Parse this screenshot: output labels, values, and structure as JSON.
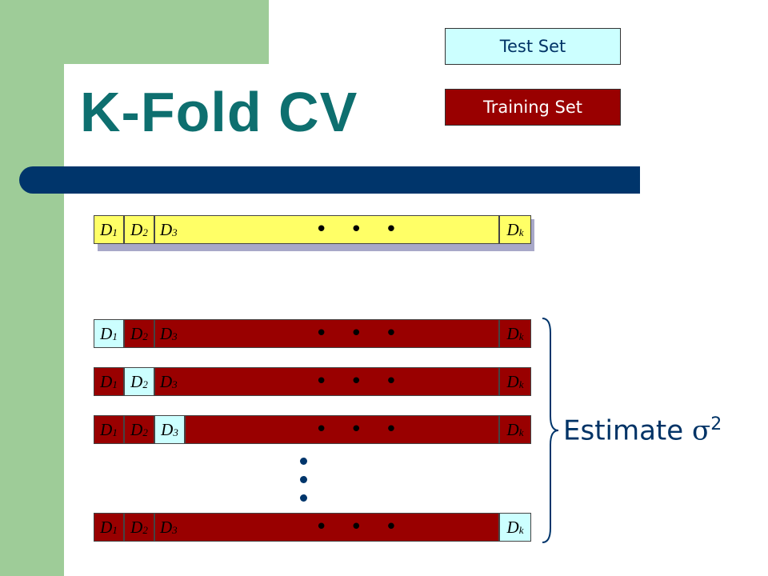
{
  "title": "K-Fold CV",
  "legend": {
    "test": "Test Set",
    "training": "Training Set"
  },
  "folds": {
    "d1": "D",
    "d1_sub": "1",
    "d2": "D",
    "d2_sub": "2",
    "d3": "D",
    "d3_sub": "3",
    "dk": "D",
    "dk_sub": "k"
  },
  "ellipsis": "• • •",
  "estimate": {
    "text": "Estimate ",
    "sigma": "σ",
    "exp": "2"
  },
  "colors": {
    "test": "#ccffff",
    "training": "#990000",
    "data": "#ffff66",
    "title": "#0e6f6f",
    "rule": "#00356b"
  }
}
